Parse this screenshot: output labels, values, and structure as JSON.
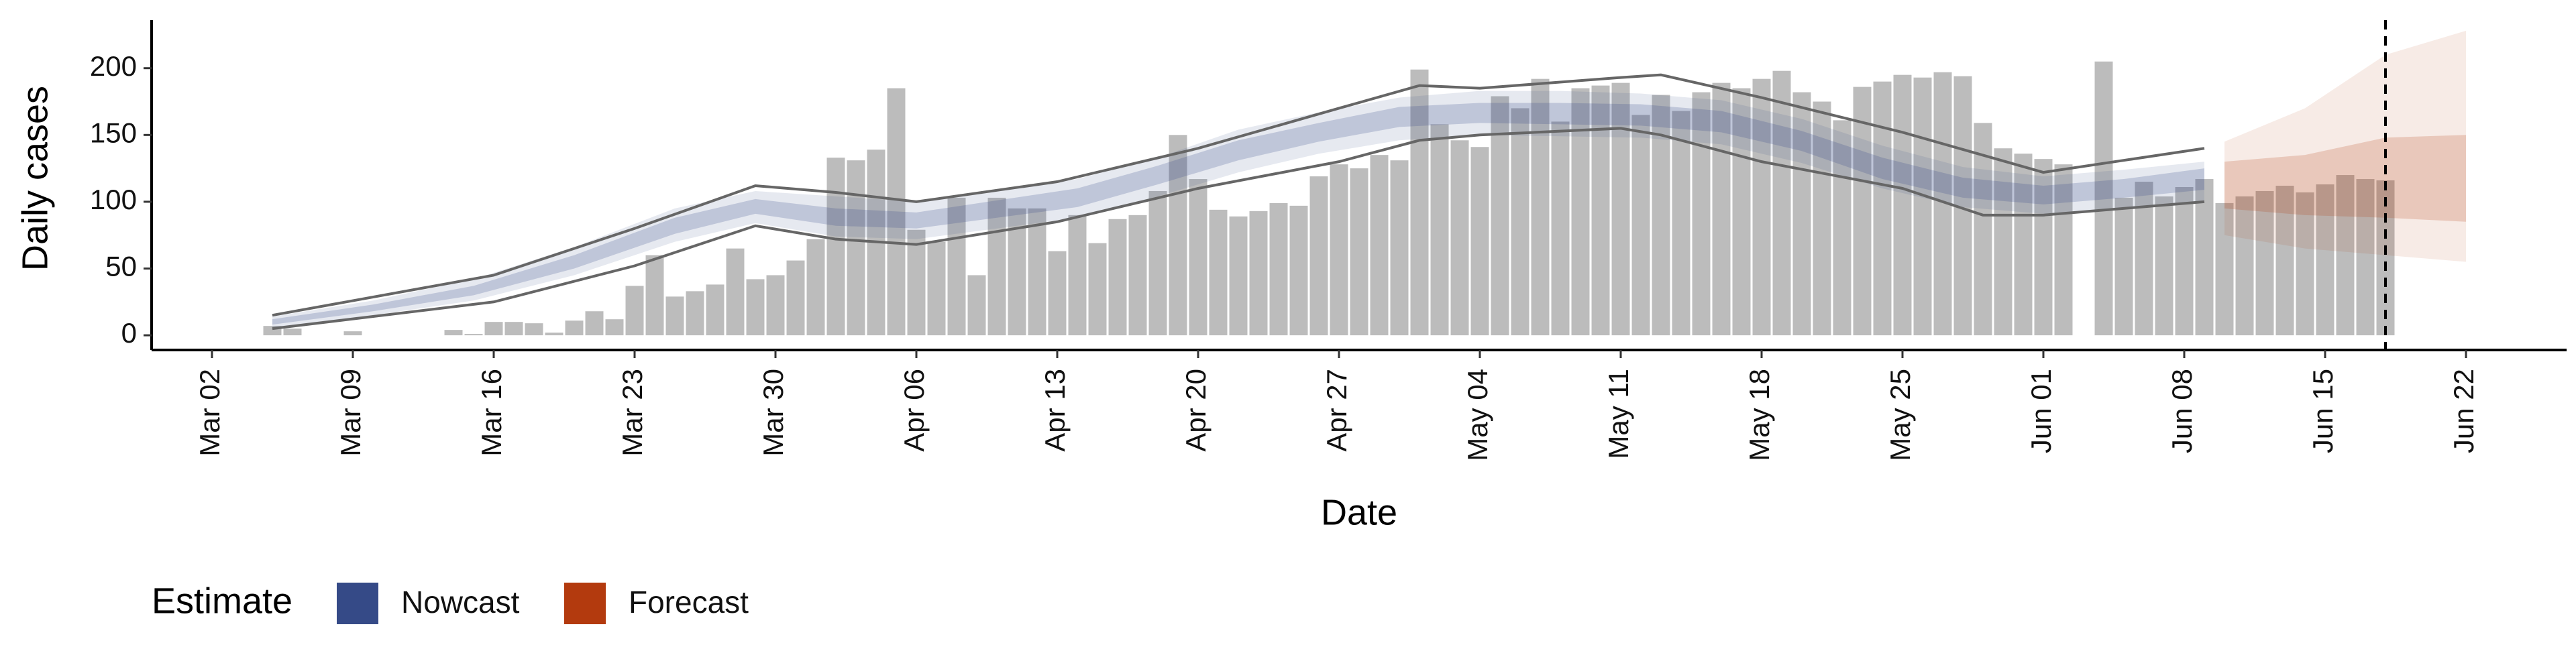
{
  "chart_data": {
    "type": "bar",
    "x_label": "Date",
    "y_label": "Daily cases",
    "xlim": [
      "Feb 28",
      "Jun 27"
    ],
    "ylim": [
      -11,
      236
    ],
    "xticks": [
      "Mar 02",
      "Mar 09",
      "Mar 16",
      "Mar 23",
      "Mar 30",
      "Apr 06",
      "Apr 13",
      "Apr 20",
      "Apr 27",
      "May 04",
      "May 11",
      "May 18",
      "May 25",
      "Jun 01",
      "Jun 08",
      "Jun 15",
      "Jun 22"
    ],
    "yticks": [
      0,
      50,
      100,
      150,
      200
    ],
    "bar_color": "#bcbcbc",
    "x": [
      "Mar 05",
      "Mar 06",
      "Mar 07",
      "Mar 08",
      "Mar 09",
      "Mar 10",
      "Mar 11",
      "Mar 12",
      "Mar 13",
      "Mar 14",
      "Mar 15",
      "Mar 16",
      "Mar 17",
      "Mar 18",
      "Mar 19",
      "Mar 20",
      "Mar 21",
      "Mar 22",
      "Mar 23",
      "Mar 24",
      "Mar 25",
      "Mar 26",
      "Mar 27",
      "Mar 28",
      "Mar 29",
      "Mar 30",
      "Mar 31",
      "Apr 01",
      "Apr 02",
      "Apr 03",
      "Apr 04",
      "Apr 05",
      "Apr 06",
      "Apr 07",
      "Apr 08",
      "Apr 09",
      "Apr 10",
      "Apr 11",
      "Apr 12",
      "Apr 13",
      "Apr 14",
      "Apr 15",
      "Apr 16",
      "Apr 17",
      "Apr 18",
      "Apr 19",
      "Apr 20",
      "Apr 21",
      "Apr 22",
      "Apr 23",
      "Apr 24",
      "Apr 25",
      "Apr 26",
      "Apr 27",
      "Apr 28",
      "Apr 29",
      "Apr 30",
      "May 01",
      "May 02",
      "May 03",
      "May 04",
      "May 05",
      "May 06",
      "May 07",
      "May 08",
      "May 09",
      "May 10",
      "May 11",
      "May 12",
      "May 13",
      "May 14",
      "May 15",
      "May 16",
      "May 17",
      "May 18",
      "May 19",
      "May 20",
      "May 21",
      "May 22",
      "May 23",
      "May 24",
      "May 25",
      "May 26",
      "May 27",
      "May 28",
      "May 29",
      "May 30",
      "May 31",
      "Jun 01",
      "Jun 02",
      "Jun 03",
      "Jun 04",
      "Jun 05",
      "Jun 06",
      "Jun 07",
      "Jun 08",
      "Jun 09",
      "Jun 10",
      "Jun 11",
      "Jun 12",
      "Jun 13",
      "Jun 14",
      "Jun 15",
      "Jun 16",
      "Jun 17",
      "Jun 18"
    ],
    "values": [
      7,
      5,
      0,
      0,
      3,
      0,
      0,
      0,
      0,
      4,
      1,
      10,
      10,
      9,
      2,
      11,
      18,
      12,
      37,
      60,
      29,
      33,
      38,
      65,
      42,
      45,
      56,
      72,
      133,
      131,
      139,
      185,
      79,
      70,
      103,
      45,
      103,
      95,
      95,
      63,
      90,
      69,
      87,
      90,
      108,
      150,
      117,
      94,
      89,
      93,
      99,
      97,
      119,
      128,
      125,
      135,
      131,
      199,
      158,
      146,
      141,
      179,
      170,
      192,
      160,
      185,
      187,
      189,
      165,
      180,
      168,
      182,
      189,
      185,
      192,
      198,
      182,
      175,
      161,
      186,
      190,
      195,
      193,
      197,
      194,
      159,
      140,
      136,
      132,
      128,
      null,
      205,
      103,
      115,
      104,
      111,
      117,
      99,
      104,
      108,
      112,
      107,
      113,
      120,
      117,
      116
    ],
    "bands": [
      {
        "color": "#354a87",
        "opacity": 0.12,
        "x": [
          "Mar 05",
          "Mar 10",
          "Mar 15",
          "Mar 20",
          "Mar 25",
          "Mar 29",
          "Apr 02",
          "Apr 06",
          "Apr 10",
          "Apr 14",
          "Apr 18",
          "Apr 22",
          "Apr 26",
          "Apr 30",
          "May 04",
          "May 08",
          "May 12",
          "May 16",
          "May 20",
          "May 24",
          "May 28",
          "Jun 01",
          "Jun 05",
          "Jun 09"
        ],
        "lower": [
          6,
          15,
          26,
          45,
          70,
          84,
          74,
          72,
          80,
          88,
          104,
          122,
          136,
          146,
          150,
          149,
          148,
          143,
          129,
          110,
          96,
          91,
          95,
          100
        ],
        "upper": [
          14,
          26,
          42,
          66,
          95,
          108,
          104,
          100,
          108,
          117,
          133,
          154,
          167,
          178,
          183,
          183,
          181,
          176,
          162,
          142,
          126,
          119,
          124,
          130
        ]
      },
      {
        "color": "#354a87",
        "opacity": 0.22,
        "x": [
          "Mar 05",
          "Mar 10",
          "Mar 15",
          "Mar 20",
          "Mar 25",
          "Mar 29",
          "Apr 02",
          "Apr 06",
          "Apr 10",
          "Apr 14",
          "Apr 18",
          "Apr 22",
          "Apr 26",
          "Apr 30",
          "May 04",
          "May 08",
          "May 12",
          "May 16",
          "May 20",
          "May 24",
          "May 28",
          "Jun 01",
          "Jun 05",
          "Jun 09"
        ],
        "lower": [
          8,
          18,
          30,
          50,
          76,
          91,
          82,
          80,
          88,
          96,
          113,
          131,
          145,
          156,
          159,
          158,
          157,
          152,
          138,
          117,
          103,
          98,
          103,
          109
        ],
        "upper": [
          12,
          23,
          37,
          60,
          88,
          102,
          95,
          92,
          101,
          110,
          127,
          146,
          159,
          171,
          174,
          174,
          173,
          168,
          153,
          133,
          118,
          112,
          117,
          125
        ]
      },
      {
        "color": "#b33a0e",
        "opacity": 0.1,
        "x": [
          "Jun 10",
          "Jun 14",
          "Jun 18",
          "Jun 22"
        ],
        "lower": [
          75,
          65,
          60,
          55
        ],
        "upper": [
          145,
          170,
          210,
          228
        ]
      },
      {
        "color": "#b33a0e",
        "opacity": 0.2,
        "x": [
          "Jun 10",
          "Jun 14",
          "Jun 18",
          "Jun 22"
        ],
        "lower": [
          95,
          90,
          88,
          85
        ],
        "upper": [
          130,
          135,
          148,
          150
        ]
      }
    ],
    "lines": [
      {
        "color": "#666666",
        "x": [
          "Mar 05",
          "Mar 16",
          "Mar 23",
          "Mar 29",
          "Apr 02",
          "Apr 06",
          "Apr 13",
          "Apr 20",
          "Apr 27",
          "May 01",
          "May 04",
          "May 11",
          "May 13",
          "May 18",
          "May 25",
          "Jun 01",
          "Jun 09"
        ],
        "values": [
          15,
          45,
          80,
          112,
          107,
          100,
          115,
          140,
          170,
          187,
          185,
          193,
          195,
          178,
          152,
          122,
          140
        ]
      },
      {
        "color": "#666666",
        "x": [
          "Mar 05",
          "Mar 16",
          "Mar 23",
          "Mar 29",
          "Apr 02",
          "Apr 06",
          "Apr 13",
          "Apr 20",
          "Apr 27",
          "May 01",
          "May 04",
          "May 11",
          "May 13",
          "May 18",
          "May 25",
          "May 29",
          "Jun 01",
          "Jun 09"
        ],
        "values": [
          5,
          25,
          52,
          82,
          72,
          68,
          85,
          110,
          130,
          146,
          150,
          155,
          150,
          130,
          110,
          90,
          90,
          100
        ]
      }
    ],
    "vline": "Jun 18",
    "legend": {
      "title": "Estimate",
      "items": [
        {
          "name": "Nowcast",
          "color": "#354a87"
        },
        {
          "name": "Forecast",
          "color": "#b33a0e"
        }
      ]
    }
  }
}
